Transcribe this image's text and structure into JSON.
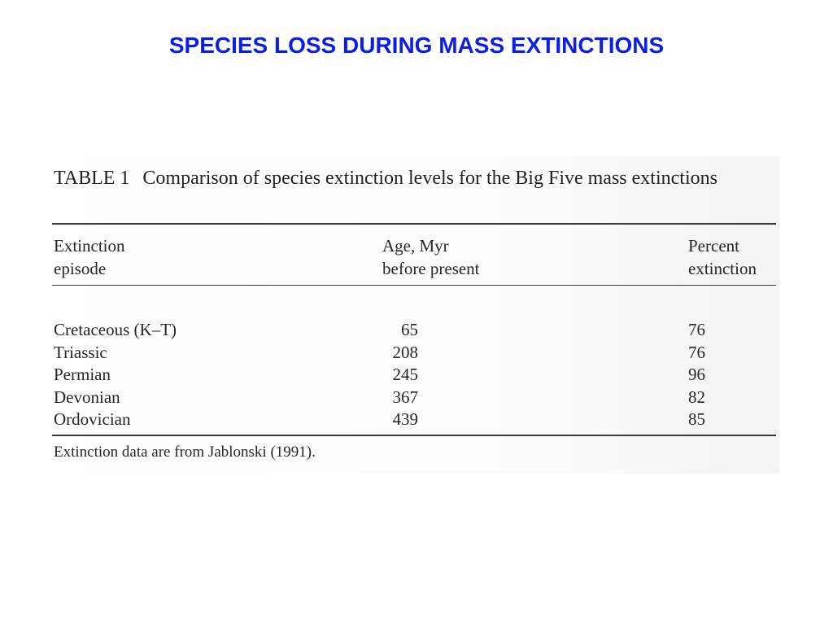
{
  "slide": {
    "title": "SPECIES LOSS DURING MASS EXTINCTIONS"
  },
  "table": {
    "label": "TABLE 1",
    "caption": "Comparison of species extinction levels for the Big Five mass extinctions",
    "headers": {
      "col1_line1": "Extinction",
      "col1_line2": "episode",
      "col2_line1": "Age, Myr",
      "col2_line2": "before present",
      "col3_line1": "Percent",
      "col3_line2": "extinction"
    },
    "rows": [
      {
        "episode": "Cretaceous (K–T)",
        "age": "65",
        "percent": "76"
      },
      {
        "episode": "Triassic",
        "age": "208",
        "percent": "76"
      },
      {
        "episode": "Permian",
        "age": "245",
        "percent": "96"
      },
      {
        "episode": "Devonian",
        "age": "367",
        "percent": "82"
      },
      {
        "episode": "Ordovician",
        "age": "439",
        "percent": "85"
      }
    ],
    "footnote": "Extinction data are from Jablonski (1991)."
  }
}
